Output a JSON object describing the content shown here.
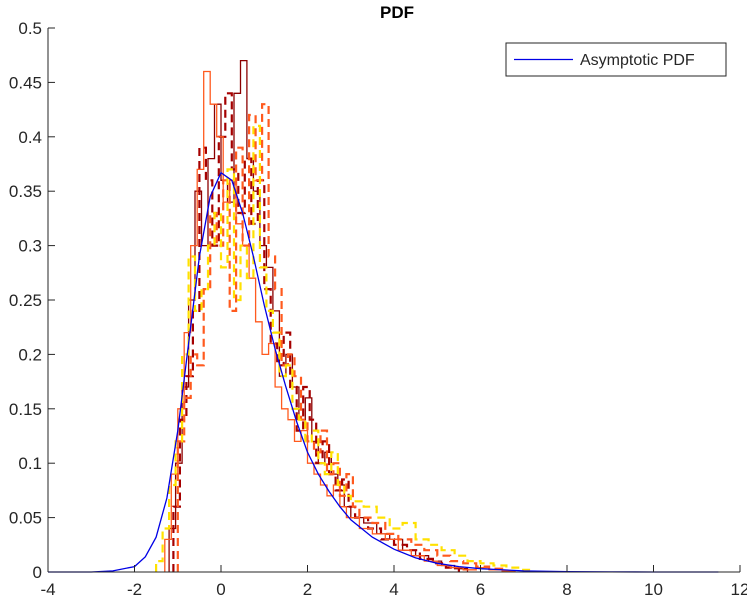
{
  "colors": {
    "asymptotic": "#0000e6",
    "hist_solid_dark": "#8b0000",
    "hist_dashed_dark": "#a50000",
    "hist_solid_orange": "#ff5a1e",
    "hist_dashed_orange": "#ff5a1e",
    "hist_dashed_yellow": "#ffe100",
    "axes": "#262626"
  },
  "chart_data": {
    "type": "line",
    "title": "PDF",
    "xlabel": "",
    "ylabel": "",
    "xlim": [
      -4,
      12
    ],
    "ylim": [
      0,
      0.5
    ],
    "xticks": [
      -4,
      -2,
      0,
      2,
      4,
      6,
      8,
      10,
      12
    ],
    "yticks": [
      0,
      0.05,
      0.1,
      0.15,
      0.2,
      0.25,
      0.3,
      0.35,
      0.4,
      0.45,
      0.5
    ],
    "xtick_labels": [
      "-4",
      "-2",
      "0",
      "2",
      "4",
      "6",
      "8",
      "10",
      "12"
    ],
    "ytick_labels": [
      "0",
      "0.05",
      "0.1",
      "0.15",
      "0.2",
      "0.25",
      "0.3",
      "0.35",
      "0.4",
      "0.45",
      "0.5"
    ],
    "grid": false,
    "legend": {
      "placement": "top-right",
      "entries": [
        "Asymptotic PDF"
      ]
    },
    "asymptotic_pdf": {
      "name": "Asymptotic PDF",
      "style": "solid",
      "color_key": "asymptotic",
      "x": [
        -4,
        -3,
        -2.5,
        -2,
        -1.75,
        -1.5,
        -1.25,
        -1,
        -0.75,
        -0.5,
        -0.25,
        0,
        0.25,
        0.5,
        0.75,
        1,
        1.25,
        1.5,
        1.75,
        2,
        2.25,
        2.5,
        2.75,
        3,
        3.5,
        4,
        4.5,
        5,
        5.5,
        6,
        7,
        8,
        9,
        10,
        11.5
      ],
      "y": [
        0,
        0,
        0.001,
        0.005,
        0.014,
        0.032,
        0.068,
        0.13,
        0.21,
        0.29,
        0.345,
        0.367,
        0.36,
        0.33,
        0.29,
        0.245,
        0.205,
        0.17,
        0.138,
        0.11,
        0.09,
        0.074,
        0.06,
        0.048,
        0.032,
        0.021,
        0.013,
        0.008,
        0.005,
        0.003,
        0.001,
        0.0004,
        0.0001,
        0,
        0
      ]
    },
    "histograms": [
      {
        "style": "solid",
        "color_key": "hist_solid_dark",
        "edges": [
          -1.2,
          -1.05,
          -0.9,
          -0.75,
          -0.6,
          -0.45,
          -0.3,
          -0.15,
          0,
          0.15,
          0.3,
          0.45,
          0.6,
          0.75,
          0.9,
          1.05,
          1.2,
          1.35,
          1.5,
          1.65,
          1.8,
          1.95,
          2.1,
          2.25,
          2.4,
          2.55,
          2.7,
          2.85,
          3.0,
          3.3,
          3.6,
          3.9,
          4.2,
          4.5,
          4.8,
          5.1,
          5.4,
          5.7
        ],
        "values": [
          0.04,
          0.1,
          0.17,
          0.25,
          0.35,
          0.3,
          0.38,
          0.43,
          0.36,
          0.34,
          0.44,
          0.47,
          0.38,
          0.35,
          0.3,
          0.28,
          0.24,
          0.18,
          0.2,
          0.17,
          0.14,
          0.16,
          0.12,
          0.1,
          0.11,
          0.09,
          0.08,
          0.06,
          0.05,
          0.045,
          0.035,
          0.03,
          0.02,
          0.015,
          0.01,
          0.006,
          0.003
        ]
      },
      {
        "style": "dashed",
        "color_key": "hist_dashed_dark",
        "edges": [
          -1.1,
          -0.95,
          -0.8,
          -0.65,
          -0.5,
          -0.35,
          -0.2,
          -0.05,
          0.1,
          0.25,
          0.4,
          0.55,
          0.7,
          0.85,
          1.0,
          1.15,
          1.3,
          1.45,
          1.6,
          1.75,
          1.9,
          2.05,
          2.2,
          2.35,
          2.5,
          2.65,
          2.8,
          2.95,
          3.1,
          3.4,
          3.7,
          4.0,
          4.3,
          4.6,
          4.9,
          5.2,
          5.5
        ],
        "values": [
          0.06,
          0.14,
          0.18,
          0.24,
          0.39,
          0.36,
          0.3,
          0.4,
          0.44,
          0.37,
          0.33,
          0.38,
          0.32,
          0.36,
          0.26,
          0.21,
          0.19,
          0.22,
          0.17,
          0.13,
          0.17,
          0.14,
          0.1,
          0.12,
          0.09,
          0.075,
          0.085,
          0.06,
          0.05,
          0.04,
          0.03,
          0.025,
          0.02,
          0.012,
          0.008,
          0.004
        ]
      },
      {
        "style": "solid",
        "color_key": "hist_solid_orange",
        "edges": [
          -1.3,
          -1.15,
          -1.0,
          -0.85,
          -0.7,
          -0.55,
          -0.4,
          -0.25,
          -0.1,
          0.05,
          0.2,
          0.35,
          0.5,
          0.65,
          0.8,
          0.95,
          1.1,
          1.25,
          1.4,
          1.55,
          1.7,
          1.85,
          2.0,
          2.15,
          2.3,
          2.45,
          2.6,
          2.75,
          2.9,
          3.2,
          3.5,
          3.8,
          4.1,
          4.4,
          4.7,
          5.0,
          5.3,
          5.6,
          5.9,
          6.2,
          6.5,
          6.8
        ],
        "values": [
          0.03,
          0.09,
          0.15,
          0.22,
          0.3,
          0.37,
          0.46,
          0.43,
          0.4,
          0.34,
          0.36,
          0.32,
          0.3,
          0.27,
          0.23,
          0.2,
          0.21,
          0.17,
          0.15,
          0.14,
          0.12,
          0.13,
          0.1,
          0.09,
          0.08,
          0.07,
          0.08,
          0.06,
          0.05,
          0.04,
          0.035,
          0.03,
          0.02,
          0.015,
          0.01,
          0.006,
          0.004,
          0.002,
          0.004,
          0.002,
          0.001
        ]
      },
      {
        "style": "dashed",
        "color_key": "hist_dashed_orange",
        "edges": [
          -1.0,
          -0.85,
          -0.7,
          -0.55,
          -0.4,
          -0.25,
          -0.1,
          0.05,
          0.2,
          0.35,
          0.5,
          0.65,
          0.8,
          0.95,
          1.1,
          1.25,
          1.4,
          1.55,
          1.7,
          1.85,
          2.0,
          2.15,
          2.3,
          2.45,
          2.6,
          2.75,
          2.9,
          3.05,
          3.2,
          3.5,
          3.8,
          4.1,
          4.4,
          4.7,
          5.0,
          5.3,
          5.6,
          5.9,
          6.2,
          6.5
        ],
        "values": [
          0.12,
          0.16,
          0.2,
          0.19,
          0.26,
          0.33,
          0.3,
          0.36,
          0.24,
          0.39,
          0.3,
          0.42,
          0.36,
          0.43,
          0.29,
          0.26,
          0.19,
          0.2,
          0.18,
          0.14,
          0.12,
          0.11,
          0.13,
          0.09,
          0.1,
          0.07,
          0.09,
          0.06,
          0.05,
          0.045,
          0.035,
          0.03,
          0.025,
          0.02,
          0.015,
          0.01,
          0.008,
          0.005,
          0.003
        ]
      },
      {
        "style": "dashed",
        "color_key": "hist_dashed_yellow",
        "edges": [
          -1.5,
          -1.35,
          -1.2,
          -1.05,
          -0.9,
          -0.75,
          -0.6,
          -0.45,
          -0.3,
          -0.15,
          0,
          0.15,
          0.3,
          0.45,
          0.6,
          0.75,
          0.9,
          1.05,
          1.2,
          1.35,
          1.5,
          1.65,
          1.8,
          1.95,
          2.1,
          2.25,
          2.4,
          2.55,
          2.7,
          2.85,
          3.0,
          3.3,
          3.6,
          3.9,
          4.2,
          4.5,
          4.8,
          5.1,
          5.4,
          5.7,
          6.0,
          6.3,
          6.6,
          6.9,
          7.2
        ],
        "values": [
          0.01,
          0.04,
          0.08,
          0.12,
          0.2,
          0.29,
          0.24,
          0.26,
          0.3,
          0.33,
          0.28,
          0.37,
          0.25,
          0.3,
          0.27,
          0.41,
          0.28,
          0.24,
          0.22,
          0.18,
          0.19,
          0.15,
          0.14,
          0.12,
          0.13,
          0.1,
          0.09,
          0.11,
          0.08,
          0.07,
          0.065,
          0.06,
          0.05,
          0.04,
          0.045,
          0.03,
          0.025,
          0.02,
          0.015,
          0.01,
          0.008,
          0.006,
          0.004,
          0.002
        ]
      }
    ]
  }
}
